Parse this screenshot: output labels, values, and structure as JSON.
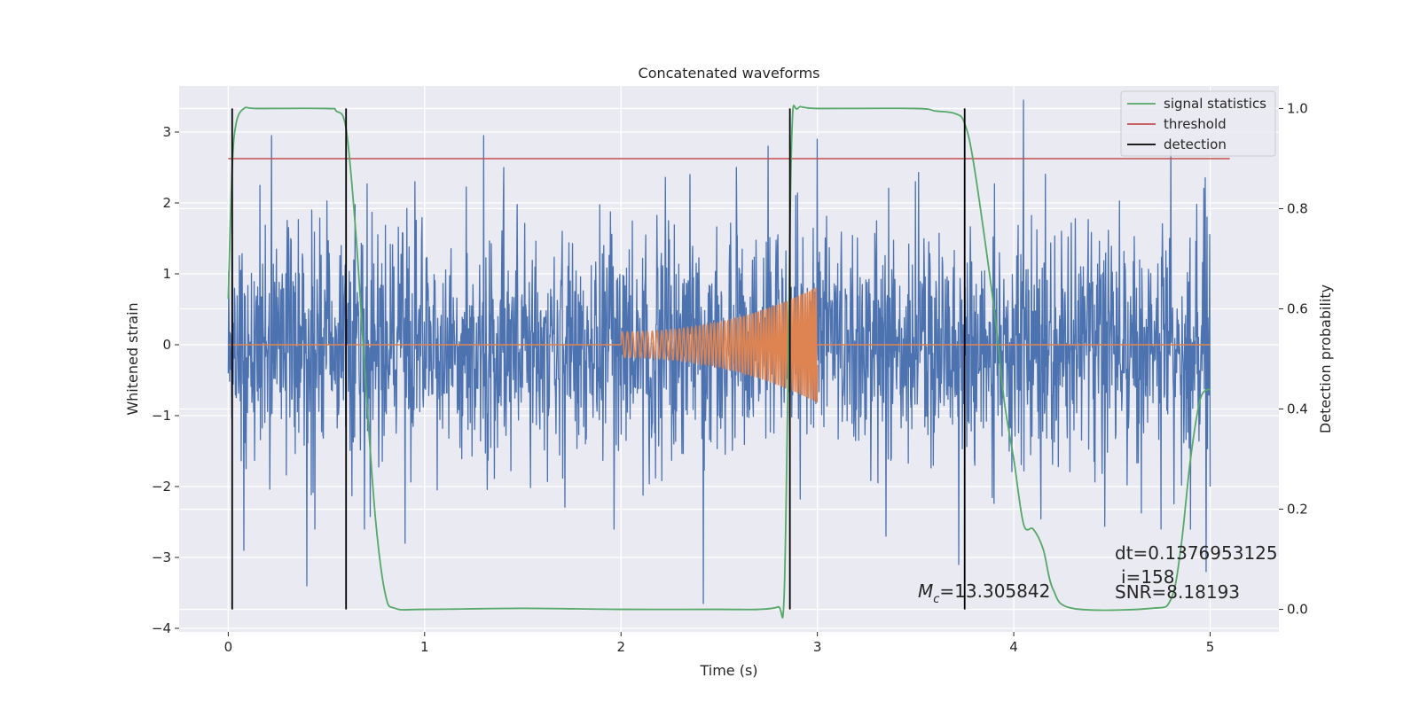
{
  "chart_data": {
    "type": "line",
    "title": "Concatenated waveforms",
    "xlabel": "Time (s)",
    "ylabel_left": "Whitened strain",
    "ylabel_right": "Detection probability",
    "xlim": [
      -0.25,
      5.35
    ],
    "ylim_left": [
      -4.05,
      3.65
    ],
    "ylim_right": [
      -0.045,
      1.045
    ],
    "x_ticks": [
      0,
      1,
      2,
      3,
      4,
      5
    ],
    "y_ticks_left": [
      -4,
      -3,
      -2,
      -1,
      0,
      1,
      2,
      3
    ],
    "y_ticks_right": [
      0.0,
      0.2,
      0.4,
      0.6,
      0.8,
      1.0
    ],
    "x_tick_labels": [
      "0",
      "1",
      "2",
      "3",
      "4",
      "5"
    ],
    "y_tick_labels_left": [
      "−4",
      "−3",
      "−2",
      "−1",
      "0",
      "1",
      "2",
      "3"
    ],
    "y_tick_labels_right": [
      "0.0",
      "0.2",
      "0.4",
      "0.6",
      "0.8",
      "1.0"
    ],
    "grid": true,
    "background": "#EAEAF2",
    "series": [
      {
        "role": "whitened_strain_noise",
        "color": "#4C72B0",
        "axis": "left",
        "x_range": [
          0,
          5
        ],
        "description_peaks_top": [
          [
            0.02,
            2.1
          ],
          [
            0.22,
            2.95
          ],
          [
            0.95,
            2.3
          ],
          [
            1.3,
            2.95
          ],
          [
            2.35,
            2.4
          ],
          [
            2.75,
            2.8
          ],
          [
            3.0,
            2.9
          ],
          [
            3.5,
            2.3
          ],
          [
            4.05,
            3.45
          ],
          [
            4.8,
            2.8
          ]
        ],
        "description_peaks_bottom": [
          [
            0.4,
            -3.4
          ],
          [
            0.08,
            -2.9
          ],
          [
            0.9,
            -2.8
          ],
          [
            2.42,
            -3.65
          ],
          [
            3.35,
            -2.7
          ],
          [
            3.72,
            -3.1
          ],
          [
            4.75,
            -2.6
          ],
          [
            4.98,
            -3.2
          ]
        ]
      },
      {
        "role": "injected_chirp",
        "color": "#DD8452",
        "axis": "left",
        "flat_segments": [
          [
            0,
            2
          ],
          [
            3,
            5
          ]
        ],
        "chirp_start": 2.0,
        "chirp_end": 3.0,
        "start_amplitude": 0.18,
        "end_amplitude": 0.82,
        "start_frequency_hz": 38,
        "end_frequency_hz": 95
      },
      {
        "name": "signal statistics",
        "color": "#55A868",
        "axis": "right",
        "x": [
          0.0,
          0.02,
          0.04,
          0.08,
          0.15,
          0.5,
          0.55,
          0.6,
          0.65,
          0.7,
          0.75,
          0.8,
          0.85,
          1.0,
          1.5,
          2.0,
          2.5,
          2.7,
          2.8,
          2.83,
          2.85,
          2.87,
          2.9,
          3.0,
          3.5,
          3.6,
          3.7,
          3.75,
          3.8,
          3.9,
          3.95,
          4.0,
          4.05,
          4.1,
          4.15,
          4.2,
          4.3,
          4.7,
          4.8,
          4.85,
          4.9,
          4.95,
          5.0
        ],
        "y": [
          0.62,
          0.88,
          0.97,
          1.0,
          1.0,
          1.0,
          0.995,
          0.96,
          0.75,
          0.45,
          0.18,
          0.03,
          0.002,
          0.0,
          0.002,
          0.0,
          0.0,
          0.0,
          0.005,
          0.02,
          0.45,
          0.95,
          1.0,
          1.0,
          1.0,
          0.995,
          0.99,
          0.97,
          0.88,
          0.6,
          0.42,
          0.3,
          0.17,
          0.16,
          0.12,
          0.04,
          0.002,
          0.002,
          0.02,
          0.12,
          0.3,
          0.42,
          0.44
        ]
      },
      {
        "name": "threshold",
        "color": "#C44E52",
        "axis": "right",
        "x": [
          0.0,
          5.1
        ],
        "y": [
          0.9,
          0.9
        ]
      },
      {
        "name": "detection",
        "color": "#000000",
        "axis": "right",
        "x_positions": [
          0.02,
          0.6,
          2.86,
          3.75
        ],
        "y_range": [
          0.0,
          1.0
        ]
      }
    ],
    "legend": {
      "placement": "upper right",
      "entries": [
        "signal statistics",
        "threshold",
        "detection"
      ]
    },
    "annotations": {
      "mc_symbol": "M",
      "mc_subscript": "c",
      "mc_value": "=13.305842",
      "dt": "dt=0.1376953125",
      "i": "i=158",
      "snr": "SNR=8.18193"
    }
  }
}
